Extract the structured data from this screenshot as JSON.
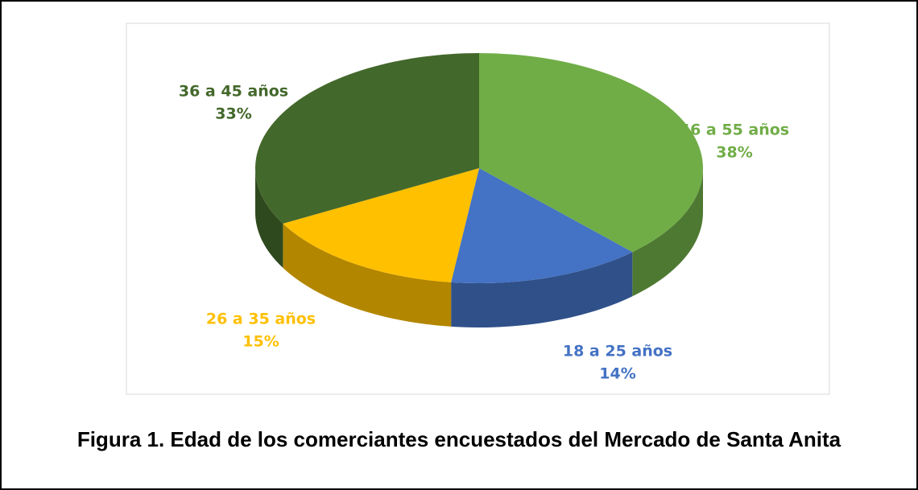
{
  "chart_data": {
    "type": "pie",
    "title": "Figura 1. Edad de los comerciantes encuestados del Mercado de Santa Anita",
    "categories": [
      "46 a 55 años",
      "18 a 25 años",
      "26 a 35 años",
      "36 a 45 años"
    ],
    "values": [
      38,
      14,
      15,
      33
    ],
    "value_labels": [
      "38%",
      "14%",
      "15%",
      "33%"
    ],
    "colors": [
      "#70ad47",
      "#4472c4",
      "#ffc000",
      "#43682b"
    ]
  }
}
